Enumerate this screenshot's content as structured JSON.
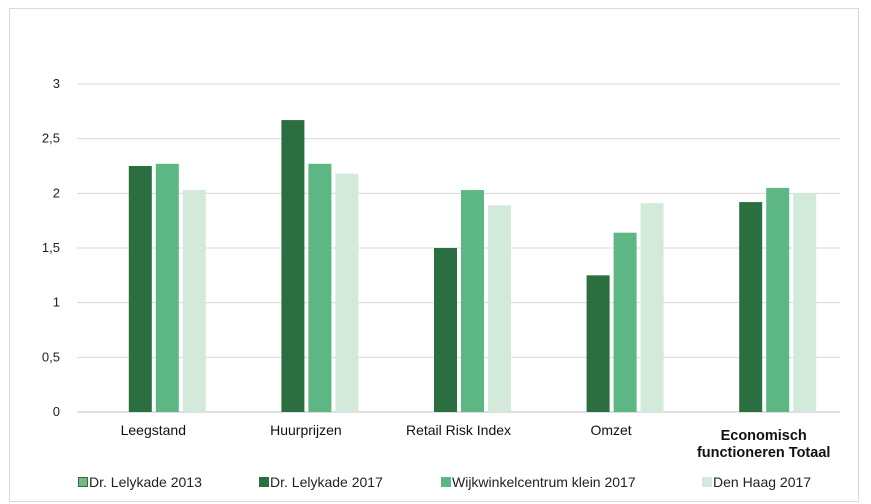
{
  "chart_data": {
    "type": "bar",
    "categories": [
      "Leegstand",
      "Huurprijzen",
      "Retail Risk Index",
      "Omzet",
      "Economisch functioneren Totaal"
    ],
    "category_lines": [
      [
        "Leegstand"
      ],
      [
        "Huurprijzen"
      ],
      [
        "Retail Risk Index"
      ],
      [
        "Omzet"
      ],
      [
        "Economisch",
        "functioneren Totaal"
      ]
    ],
    "bold_categories": [
      false,
      false,
      false,
      false,
      true
    ],
    "series": [
      {
        "name": "Dr. Lelykade 2013",
        "color": "#77b983",
        "values": [
          null,
          null,
          null,
          null,
          null
        ]
      },
      {
        "name": "Dr. Lelykade 2017",
        "color": "#2b6e3f",
        "values": [
          2.25,
          2.67,
          1.5,
          1.25,
          1.92
        ]
      },
      {
        "name": "Wijkwinkelcentrum klein 2017",
        "color": "#5cb784",
        "values": [
          2.27,
          2.27,
          2.03,
          1.64,
          2.05
        ]
      },
      {
        "name": "Den Haag 2017",
        "color": "#d3e9da",
        "values": [
          2.03,
          2.18,
          1.89,
          1.91,
          2.0
        ]
      }
    ],
    "yticks": [
      "0",
      "0,5",
      "1",
      "1,5",
      "2",
      "2,5",
      "3"
    ],
    "ylim": [
      0,
      3
    ],
    "ytick_step": 0.5,
    "grid": true,
    "legend_position": "bottom",
    "title": "",
    "xlabel": "",
    "ylabel": ""
  }
}
